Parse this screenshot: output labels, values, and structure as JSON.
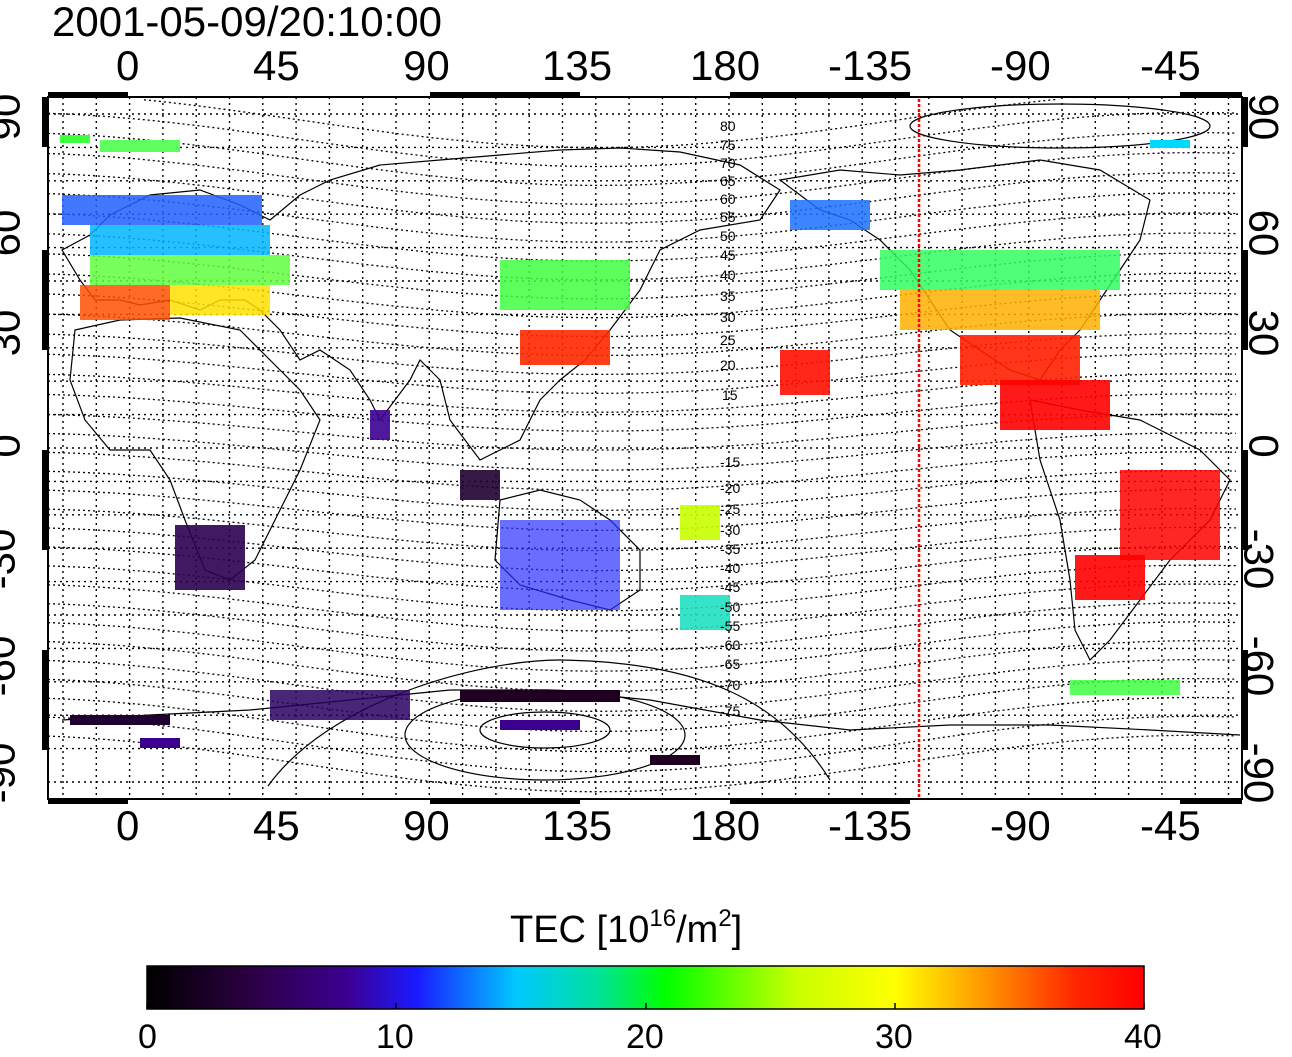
{
  "title": "2001-05-09/20:10:00",
  "lon_ticks": [
    "0",
    "45",
    "90",
    "135",
    "180",
    "-135",
    "-90",
    "-45"
  ],
  "lat_ticks": [
    "90",
    "60",
    "30",
    "0",
    "-30",
    "-60",
    "-90"
  ],
  "colorbar": {
    "title_main": "TEC  [10",
    "title_exp1": "16",
    "title_mid": "/m",
    "title_exp2": "2",
    "title_end": "]",
    "labels": [
      "0",
      "10",
      "20",
      "30",
      "40"
    ],
    "stops": [
      "#000000",
      "#2a0040",
      "#3c0090",
      "#1a1aff",
      "#00c8ff",
      "#00e0a0",
      "#00ff00",
      "#c8ff00",
      "#ffff00",
      "#ff9600",
      "#ff2800",
      "#ff0000"
    ]
  },
  "mlat_labels": {
    "north": [
      "80",
      "75",
      "70",
      "65",
      "60",
      "55",
      "50",
      "45",
      "40",
      "35",
      "30",
      "25",
      "20",
      "15"
    ],
    "south": [
      "-15",
      "-20",
      "-25",
      "-30",
      "-35",
      "-40",
      "-45",
      "-50",
      "-55",
      "-60",
      "-65",
      "-70",
      "-75"
    ]
  },
  "terminator_lon": -123,
  "colors": {
    "terminator": "#ff0000",
    "frame": "#000000"
  }
}
